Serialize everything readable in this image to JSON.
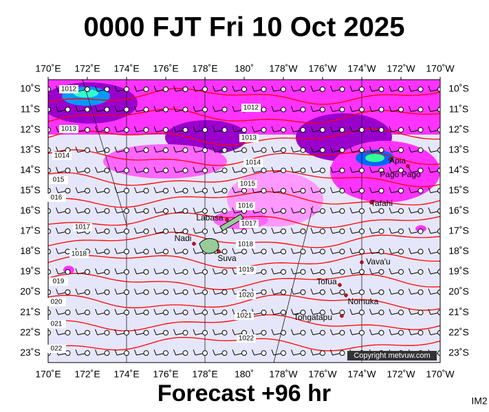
{
  "title": "0000 FJT Fri 10 Oct 2025",
  "lon_labels": [
    "170˚E",
    "172˚E",
    "174˚E",
    "176˚E",
    "178˚E",
    "180˚",
    "178˚W",
    "176˚W",
    "174˚W",
    "172˚W",
    "170˚W"
  ],
  "lat_labels": [
    "10˚S",
    "11˚S",
    "12˚S",
    "13˚S",
    "14˚S",
    "15˚S",
    "16˚S",
    "17˚S",
    "18˚S",
    "19˚S",
    "20˚S",
    "21˚S",
    "22˚S",
    "23˚S"
  ],
  "isobar_labels": [
    "1012",
    "1012",
    "1013",
    "1013",
    "1014",
    "1014",
    "015",
    "1015",
    "016",
    "1016",
    "1017",
    "1017",
    "1018",
    "1018",
    "019",
    "1019",
    "020",
    "1020",
    "021",
    "1021",
    "022",
    "1022"
  ],
  "places": [
    "Labasa",
    "Nadi",
    "Suva",
    "Apia",
    "Pago Pago",
    "Tafahi",
    "Vava'u",
    "Tofua",
    "Nomuka",
    "Tongatapu"
  ],
  "copyright": "Copyright metvuw.com",
  "footer": "Forecast +96 hr",
  "image_id": "IM2"
}
